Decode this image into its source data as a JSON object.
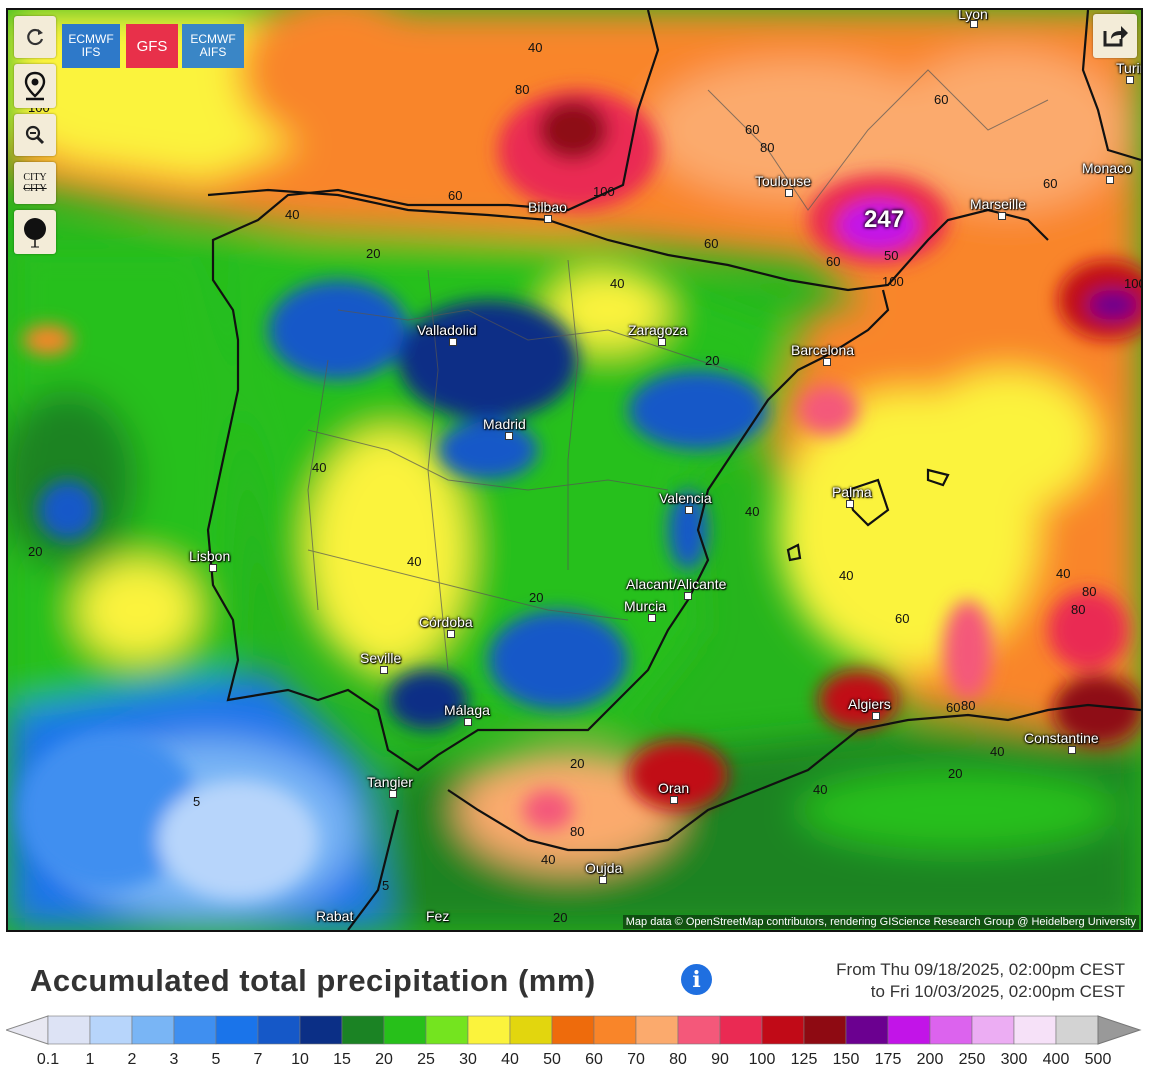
{
  "controls": {
    "refresh_icon": "refresh-icon",
    "location_icon": "map-pin-icon",
    "zoom_out_icon": "zoom-out-icon",
    "city_toggle_label_top": "CITY",
    "city_toggle_label_bottom": "CITY",
    "marker_icon": "marker-icon",
    "share_icon": "share-icon"
  },
  "models": [
    {
      "label_line1": "ECMWF",
      "label_line2": "IFS",
      "color": "#2e79c9"
    },
    {
      "label_line1": "GFS",
      "label_line2": "",
      "color": "#e8304a"
    },
    {
      "label_line1": "ECMWF",
      "label_line2": "AIFS",
      "color": "#3a86c6"
    }
  ],
  "map": {
    "cities": [
      {
        "name": "Lyon"
      },
      {
        "name": "Turin"
      },
      {
        "name": "Monaco"
      },
      {
        "name": "Marseille"
      },
      {
        "name": "Toulouse"
      },
      {
        "name": "Bilbao"
      },
      {
        "name": "Valladolid"
      },
      {
        "name": "Zaragoza"
      },
      {
        "name": "Barcelona"
      },
      {
        "name": "Madrid"
      },
      {
        "name": "Palma"
      },
      {
        "name": "Valencia"
      },
      {
        "name": "Lisbon"
      },
      {
        "name": "Alacant/Alicante"
      },
      {
        "name": "Murcia"
      },
      {
        "name": "Córdoba"
      },
      {
        "name": "Seville"
      },
      {
        "name": "Málaga"
      },
      {
        "name": "Algiers"
      },
      {
        "name": "Constantine"
      },
      {
        "name": "Tangier"
      },
      {
        "name": "Oran"
      },
      {
        "name": "Oujda"
      },
      {
        "name": "Rabat"
      },
      {
        "name": "Fez"
      }
    ],
    "contour_labels": [
      "40",
      "80",
      "60",
      "60",
      "80",
      "100",
      "60",
      "40",
      "60",
      "20",
      "40",
      "20",
      "100",
      "60",
      "80",
      "40",
      "20",
      "40",
      "40",
      "40",
      "20",
      "20",
      "60",
      "40",
      "80",
      "80",
      "60",
      "40",
      "20",
      "40",
      "20",
      "5",
      "5",
      "80",
      "40",
      "100",
      "50",
      "100",
      "60",
      "247"
    ],
    "max_label": "247",
    "credit": "Map data © OpenStreetMap contributors, rendering GIScience Research Group @ Heidelberg University"
  },
  "legend": {
    "title": "Accumulated total precipitation (mm)",
    "info_icon": "info-icon",
    "from_text": "From Thu 09/18/2025, 02:00pm CEST",
    "to_text": "to Fri 10/03/2025, 02:00pm CEST",
    "ticks": [
      "0.1",
      "1",
      "2",
      "3",
      "5",
      "7",
      "10",
      "15",
      "20",
      "25",
      "30",
      "40",
      "50",
      "60",
      "70",
      "80",
      "90",
      "100",
      "125",
      "150",
      "175",
      "200",
      "250",
      "300",
      "400",
      "500"
    ],
    "colors": [
      "#dde3f5",
      "#b7d5fb",
      "#79b5f5",
      "#3f8ff0",
      "#1a74ea",
      "#1558c8",
      "#0b2f86",
      "#1b8324",
      "#27c01a",
      "#74e41f",
      "#fbf33c",
      "#e2d60e",
      "#ee6b0c",
      "#f98529",
      "#fbaa6d",
      "#f4587a",
      "#ea2a53",
      "#c10a17",
      "#8e0a12",
      "#6b0090",
      "#c214e8",
      "#dc63ee",
      "#ecadf3",
      "#f6e1f8",
      "#d3d3d3"
    ]
  }
}
